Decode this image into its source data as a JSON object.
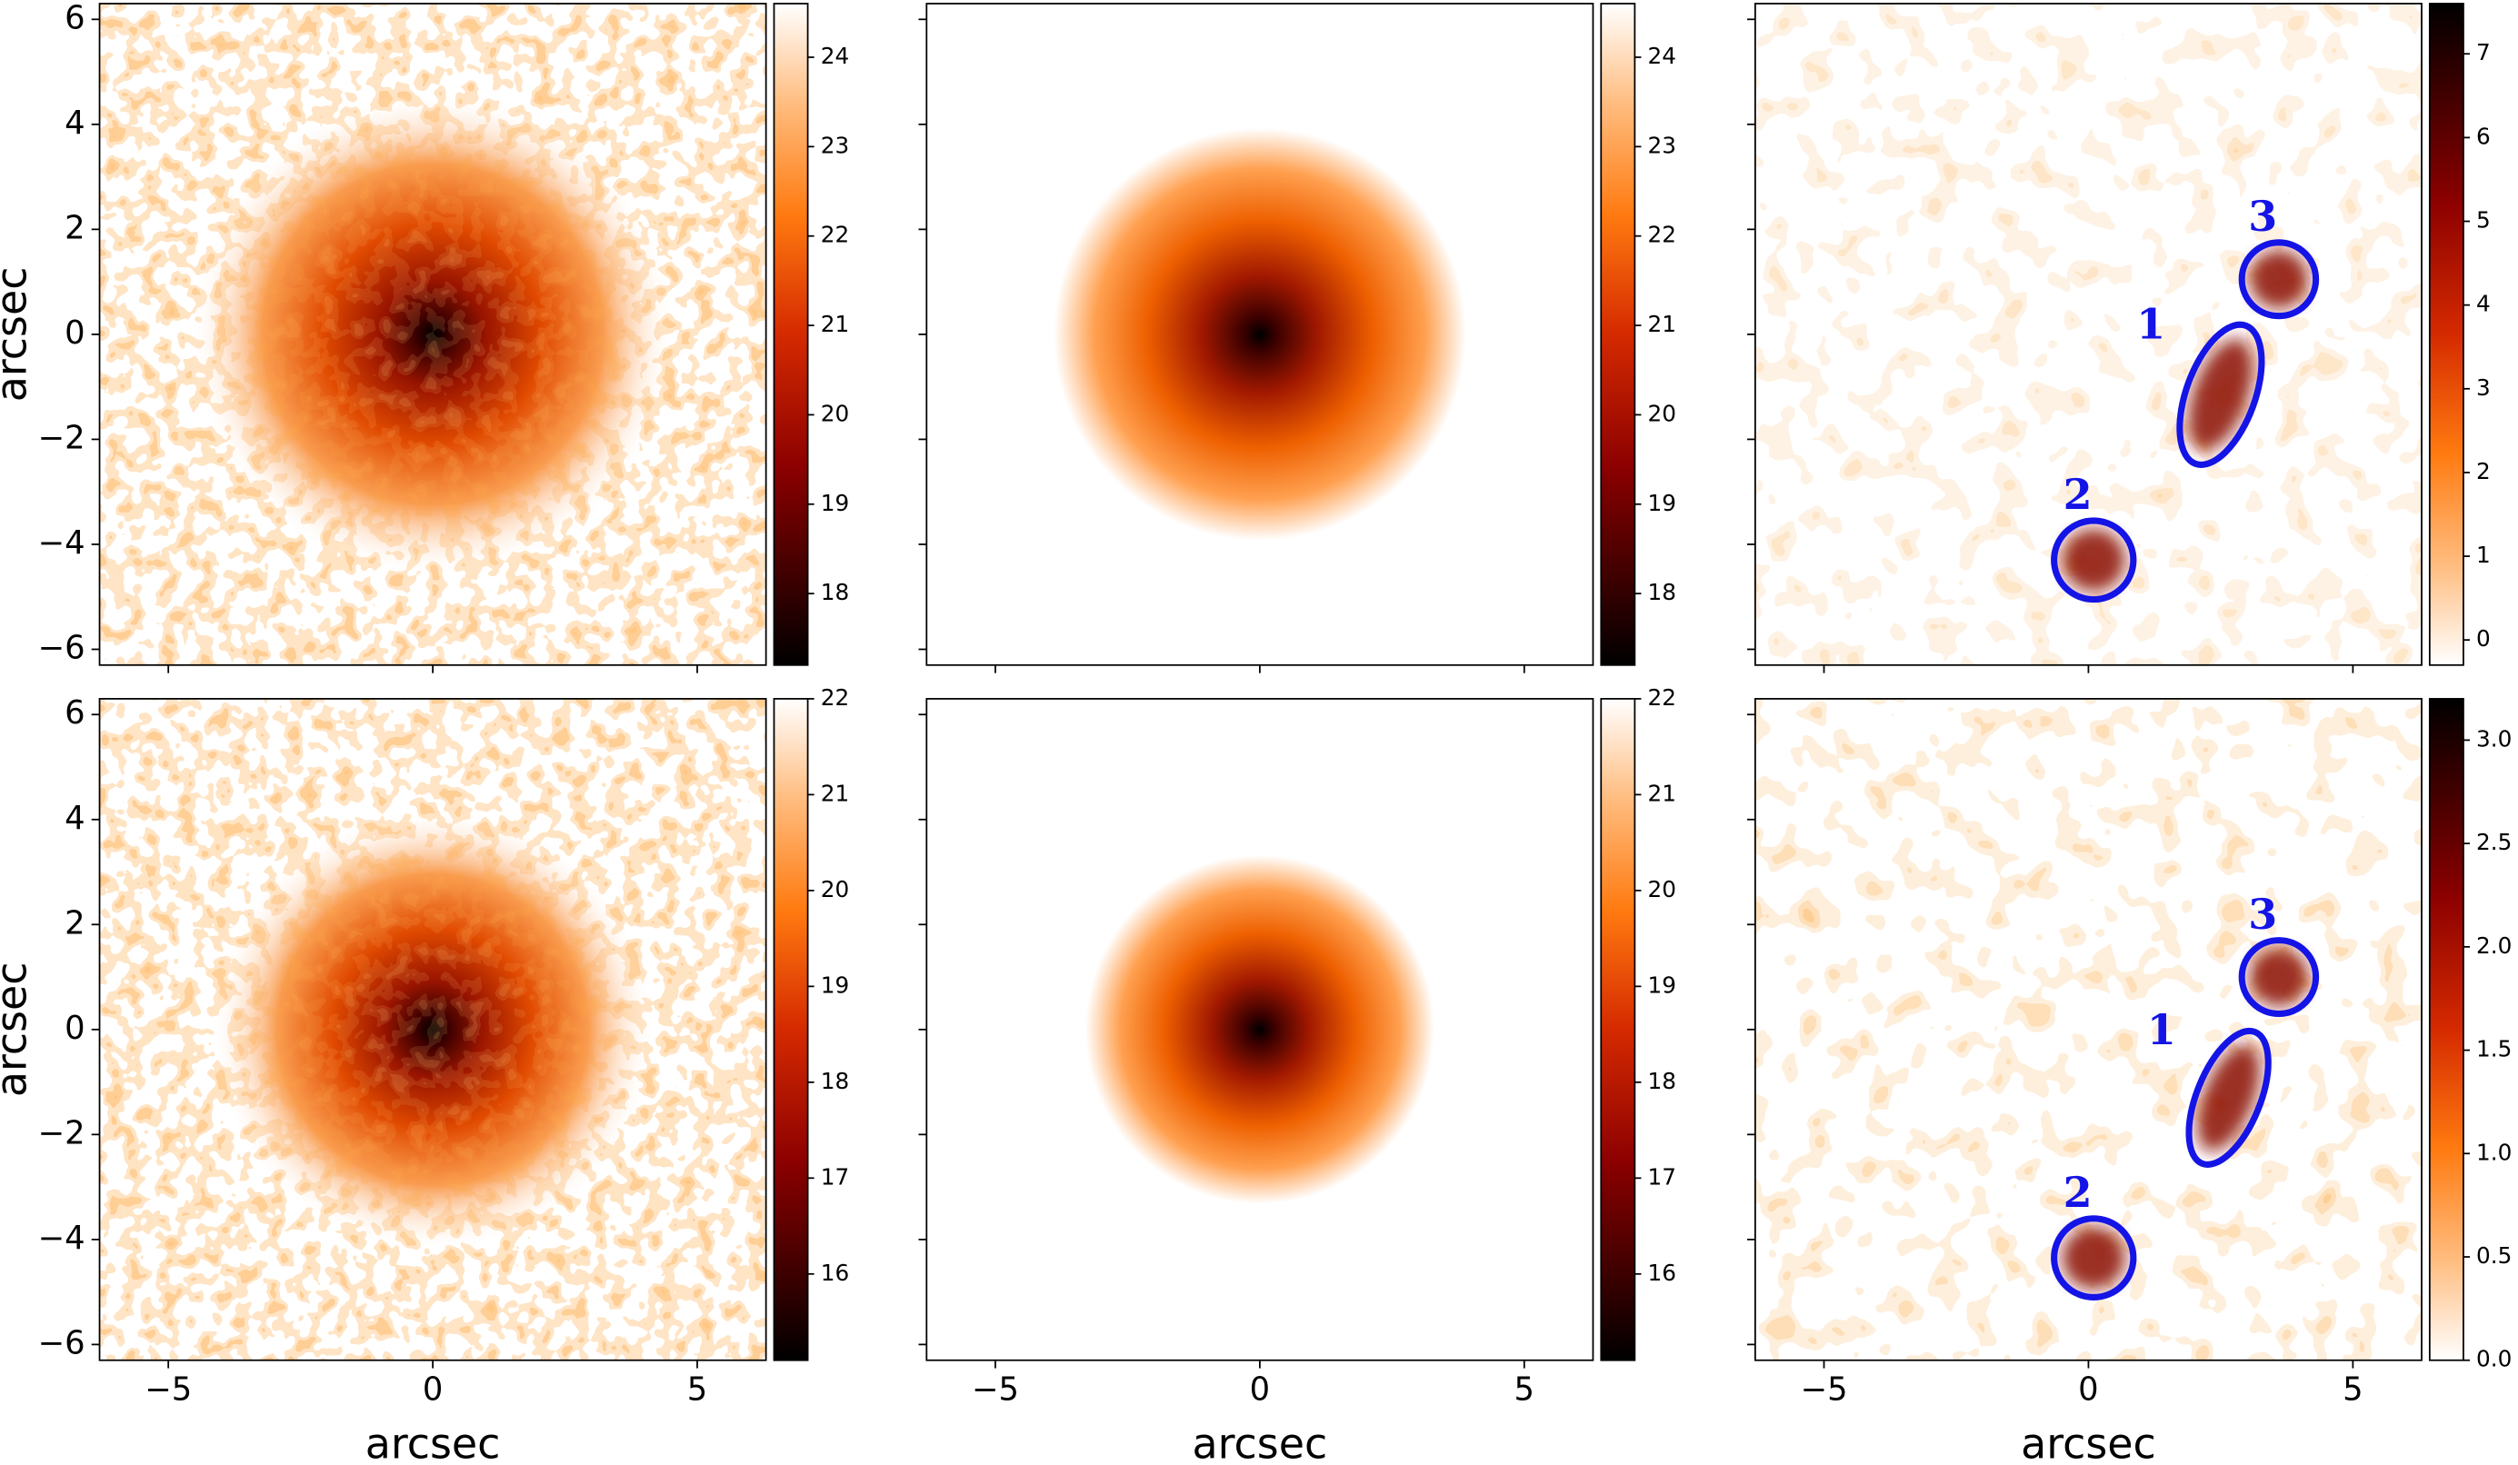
{
  "chart_data": [
    {
      "type": "image",
      "colormap": "gist_heat",
      "xlim": [
        -6.3,
        6.3
      ],
      "ylim": [
        -6.3,
        6.3
      ],
      "xticks": [
        -5,
        0,
        5
      ],
      "show_xticklabels": false,
      "yticks": [
        {
          "value": -6,
          "label": "−6"
        },
        {
          "value": -4,
          "label": "−4"
        },
        {
          "value": -2,
          "label": "−2"
        },
        0,
        2,
        4,
        6
      ],
      "show_yticklabels": true,
      "ylabel": "arcsec",
      "colorbar": {
        "lim": [
          17.2,
          24.6
        ],
        "ticks": [
          18,
          19,
          20,
          21,
          22,
          23,
          24
        ]
      }
    },
    {
      "type": "image",
      "colormap": "gist_heat",
      "xlim": [
        -6.3,
        6.3
      ],
      "ylim": [
        -6.3,
        6.3
      ],
      "xticks": [
        -5,
        0,
        5
      ],
      "show_xticklabels": false,
      "yticks": [
        -6,
        -4,
        -2,
        0,
        2,
        4,
        6
      ],
      "show_yticklabels": false,
      "colorbar": {
        "lim": [
          17.2,
          24.6
        ],
        "ticks": [
          18,
          19,
          20,
          21,
          22,
          23,
          24
        ]
      }
    },
    {
      "type": "image",
      "colormap": "gist_heat_r",
      "xlim": [
        -6.3,
        6.3
      ],
      "ylim": [
        -6.3,
        6.3
      ],
      "xticks": [
        -5,
        0,
        5
      ],
      "show_xticklabels": false,
      "yticks": [
        -6,
        -4,
        -2,
        0,
        2,
        4,
        6
      ],
      "show_yticklabels": false,
      "colorbar": {
        "lim": [
          -0.3,
          7.6
        ],
        "ticks": [
          0,
          1,
          2,
          3,
          4,
          5,
          6,
          7
        ]
      },
      "region_color": "#1414e6",
      "regions": [
        {
          "label": "1",
          "x": 2.5,
          "y": -1.15,
          "width": 1.3,
          "height": 2.8,
          "angle": 20
        },
        {
          "label": "2",
          "x": 0.1,
          "y": -4.3,
          "width": 1.5,
          "height": 1.5,
          "angle": 0
        },
        {
          "label": "3",
          "x": 3.6,
          "y": 1.05,
          "width": 1.4,
          "height": 1.4,
          "angle": 0
        }
      ]
    },
    {
      "type": "image",
      "colormap": "gist_heat",
      "xlim": [
        -6.3,
        6.3
      ],
      "ylim": [
        -6.3,
        6.3
      ],
      "xticks": [
        {
          "value": -5,
          "label": "−5"
        },
        0,
        5
      ],
      "show_xticklabels": true,
      "yticks": [
        {
          "value": -6,
          "label": "−6"
        },
        {
          "value": -4,
          "label": "−4"
        },
        {
          "value": -2,
          "label": "−2"
        },
        0,
        2,
        4,
        6
      ],
      "show_yticklabels": true,
      "xlabel": "arcsec",
      "ylabel": "arcsec",
      "colorbar": {
        "lim": [
          15.1,
          22.0
        ],
        "ticks": [
          16,
          17,
          18,
          19,
          20,
          21,
          22
        ]
      }
    },
    {
      "type": "image",
      "colormap": "gist_heat",
      "xlim": [
        -6.3,
        6.3
      ],
      "ylim": [
        -6.3,
        6.3
      ],
      "xticks": [
        {
          "value": -5,
          "label": "−5"
        },
        0,
        5
      ],
      "show_xticklabels": true,
      "yticks": [
        -6,
        -4,
        -2,
        0,
        2,
        4,
        6
      ],
      "show_yticklabels": false,
      "xlabel": "arcsec",
      "colorbar": {
        "lim": [
          15.1,
          22.0
        ],
        "ticks": [
          16,
          17,
          18,
          19,
          20,
          21,
          22
        ]
      }
    },
    {
      "type": "image",
      "colormap": "gist_heat_r",
      "xlim": [
        -6.3,
        6.3
      ],
      "ylim": [
        -6.3,
        6.3
      ],
      "xticks": [
        {
          "value": -5,
          "label": "−5"
        },
        0,
        5
      ],
      "show_xticklabels": true,
      "yticks": [
        -6,
        -4,
        -2,
        0,
        2,
        4,
        6
      ],
      "show_yticklabels": false,
      "xlabel": "arcsec",
      "colorbar": {
        "lim": [
          0.0,
          3.2
        ],
        "ticks": [
          {
            "value": 0,
            "label": "0.0"
          },
          {
            "value": 0.5,
            "label": "0.5"
          },
          {
            "value": 1,
            "label": "1.0"
          },
          {
            "value": 1.5,
            "label": "1.5"
          },
          {
            "value": 2,
            "label": "2.0"
          },
          {
            "value": 2.5,
            "label": "2.5"
          },
          {
            "value": 3,
            "label": "3.0"
          }
        ]
      },
      "region_color": "#1414e6",
      "regions": [
        {
          "label": "1",
          "x": 2.65,
          "y": -1.3,
          "width": 1.2,
          "height": 2.7,
          "angle": 22
        },
        {
          "label": "2",
          "x": 0.1,
          "y": -4.35,
          "width": 1.5,
          "height": 1.5,
          "angle": 0
        },
        {
          "label": "3",
          "x": 3.6,
          "y": 1.0,
          "width": 1.4,
          "height": 1.4,
          "angle": 0
        }
      ]
    }
  ]
}
